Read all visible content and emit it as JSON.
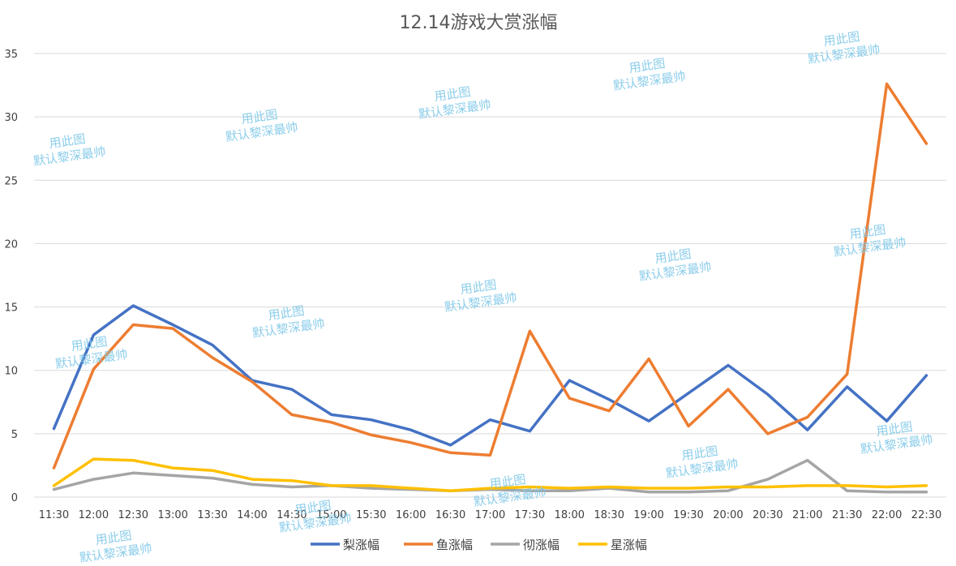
{
  "chart_data": {
    "type": "line",
    "title": "12.14游戏大赏涨幅",
    "xlabel": "",
    "ylabel": "",
    "ylim": [
      0,
      35
    ],
    "yticks": [
      0,
      5,
      10,
      15,
      20,
      25,
      30,
      35
    ],
    "grid": true,
    "legend": "bottom",
    "categories": [
      "11:30",
      "12:00",
      "12:30",
      "13:00",
      "13:30",
      "14:00",
      "14:30",
      "15:00",
      "15:30",
      "16:00",
      "16:30",
      "17:00",
      "17:30",
      "18:00",
      "18:30",
      "19:00",
      "19:30",
      "20:00",
      "20:30",
      "21:00",
      "21:30",
      "22:00",
      "22:30"
    ],
    "series": [
      {
        "name": "梨涨幅",
        "color": "#4472c4",
        "values": [
          5.4,
          12.8,
          15.1,
          13.6,
          12.0,
          9.2,
          8.5,
          6.5,
          6.1,
          5.3,
          4.1,
          6.1,
          5.2,
          9.2,
          7.7,
          6.0,
          8.2,
          10.4,
          8.1,
          5.3,
          8.7,
          6.0,
          9.6
        ]
      },
      {
        "name": "鱼涨幅",
        "color": "#ed7d31",
        "values": [
          2.3,
          10.1,
          13.6,
          13.3,
          11.0,
          9.1,
          6.5,
          5.9,
          4.9,
          4.3,
          3.5,
          3.3,
          13.1,
          7.8,
          6.8,
          10.9,
          5.6,
          8.5,
          5.0,
          6.3,
          9.7,
          32.6,
          27.9
        ]
      },
      {
        "name": "彻涨幅",
        "color": "#a5a5a5",
        "values": [
          0.6,
          1.4,
          1.9,
          1.7,
          1.5,
          1.0,
          0.8,
          0.9,
          0.7,
          0.6,
          0.5,
          0.6,
          0.5,
          0.5,
          0.7,
          0.4,
          0.4,
          0.5,
          1.4,
          2.9,
          0.5,
          0.4,
          0.4
        ]
      },
      {
        "name": "星涨幅",
        "color": "#ffc000",
        "values": [
          0.9,
          3.0,
          2.9,
          2.3,
          2.1,
          1.4,
          1.3,
          0.9,
          0.9,
          0.7,
          0.5,
          0.7,
          0.8,
          0.7,
          0.8,
          0.7,
          0.7,
          0.8,
          0.8,
          0.9,
          0.9,
          0.8,
          0.9
        ]
      }
    ]
  },
  "watermark": {
    "line1": "用此图",
    "line2": "默认黎深最帅"
  }
}
